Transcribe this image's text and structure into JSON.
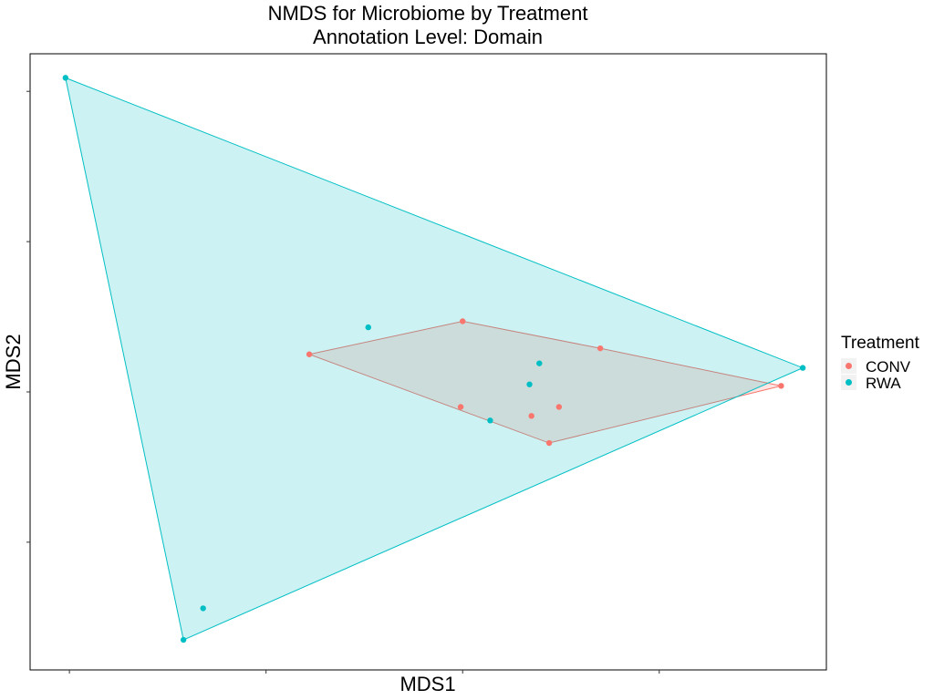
{
  "chart_data": {
    "type": "scatter",
    "title_lines": [
      "NMDS for Microbiome by Treatment",
      "Annotation Level: Domain"
    ],
    "xlabel": "MDS1",
    "ylabel": "MDS2",
    "xlim": [
      -1.7,
      2.35
    ],
    "ylim": [
      -1.85,
      2.25
    ],
    "x_ticks": [
      -1.5,
      -0.5,
      0.5,
      1.5
    ],
    "y_ticks": [
      -1.0,
      0.0,
      1.0,
      2.0
    ],
    "tick_labels_visible": false,
    "grid": false,
    "legend": {
      "title": "Treatment",
      "position": "right"
    },
    "series": [
      {
        "name": "CONV",
        "color": "#F8766D",
        "points": [
          {
            "x": -0.28,
            "y": 0.25
          },
          {
            "x": 0.5,
            "y": 0.47
          },
          {
            "x": 1.2,
            "y": 0.29
          },
          {
            "x": 2.12,
            "y": 0.04
          },
          {
            "x": 0.94,
            "y": -0.34
          },
          {
            "x": 0.49,
            "y": -0.1
          },
          {
            "x": 0.85,
            "y": -0.16
          },
          {
            "x": 0.99,
            "y": -0.1
          }
        ],
        "hull_order": [
          0,
          1,
          2,
          3,
          4
        ]
      },
      {
        "name": "RWA",
        "color": "#00BFC4",
        "points": [
          {
            "x": -1.52,
            "y": 2.09
          },
          {
            "x": 2.23,
            "y": 0.16
          },
          {
            "x": -0.92,
            "y": -1.65
          },
          {
            "x": -0.82,
            "y": -1.44
          },
          {
            "x": 0.02,
            "y": 0.43
          },
          {
            "x": 0.89,
            "y": 0.19
          },
          {
            "x": 0.84,
            "y": 0.05
          },
          {
            "x": 0.64,
            "y": -0.19
          }
        ],
        "hull_order": [
          0,
          1,
          2
        ]
      }
    ]
  }
}
